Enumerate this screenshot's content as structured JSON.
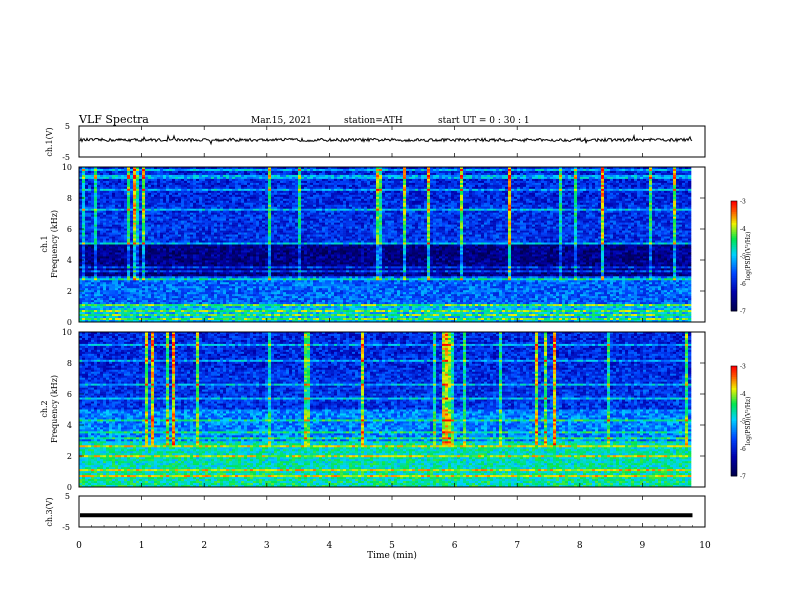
{
  "header": {
    "title": "VLF  Spectra",
    "date": "Mar.15, 2021",
    "station": "station=ATH",
    "start": "start  UT  =    0  : 30 : 1"
  },
  "chart_data": [
    {
      "type": "line",
      "id": "ch1-waveform",
      "ylabel": "ch.1(V)",
      "ylim": [
        -5,
        5
      ],
      "yticks": [
        "5",
        "-5"
      ],
      "xlim": [
        0,
        10
      ],
      "x_end": 9.8,
      "baseline": 0.5,
      "description_color": "#000000"
    },
    {
      "type": "heatmap",
      "id": "ch1-spectrogram",
      "ylabel": "ch.1\nFrequency  (kHz)",
      "ylabel_lines": [
        "ch.1",
        "Frequency  (kHz)"
      ],
      "ylim": [
        0,
        10
      ],
      "yticks": [
        "0",
        "2",
        "4",
        "6",
        "8",
        "10"
      ],
      "xlim": [
        0,
        10
      ],
      "x_end": 9.8,
      "colorbar": {
        "label": "log(PSD)(V²/Hz)",
        "range": [
          -7,
          -3
        ],
        "ticks": [
          "-3",
          "-4",
          "-5",
          "-6",
          "-7"
        ]
      }
    },
    {
      "type": "heatmap",
      "id": "ch2-spectrogram",
      "ylabel_lines": [
        "ch.2",
        "Frequency  (kHz)"
      ],
      "ylim": [
        0,
        10
      ],
      "yticks": [
        "0",
        "2",
        "4",
        "6",
        "8",
        "10"
      ],
      "xlim": [
        0,
        10
      ],
      "x_end": 9.8,
      "colorbar": {
        "label": "log(PSD)(V²/Hz)",
        "range": [
          -7,
          -3
        ],
        "ticks": [
          "-3",
          "-4",
          "-5",
          "-6",
          "-7"
        ]
      }
    },
    {
      "type": "line",
      "id": "ch3-waveform",
      "ylabel": "ch.3(V)",
      "ylim": [
        -5,
        5
      ],
      "yticks": [
        "5",
        "-5"
      ],
      "xlim": [
        0,
        10
      ],
      "x_end": 9.8,
      "baseline": -1.2
    }
  ],
  "xaxis": {
    "label": "Time  (min)",
    "ticks": [
      "0",
      "1",
      "2",
      "3",
      "4",
      "5",
      "6",
      "7",
      "8",
      "9",
      "10"
    ]
  },
  "colors": {
    "spectrum_low": "#000060",
    "spectrum_mid": "#00c8ff",
    "spectrum_high": "#ff0000"
  }
}
